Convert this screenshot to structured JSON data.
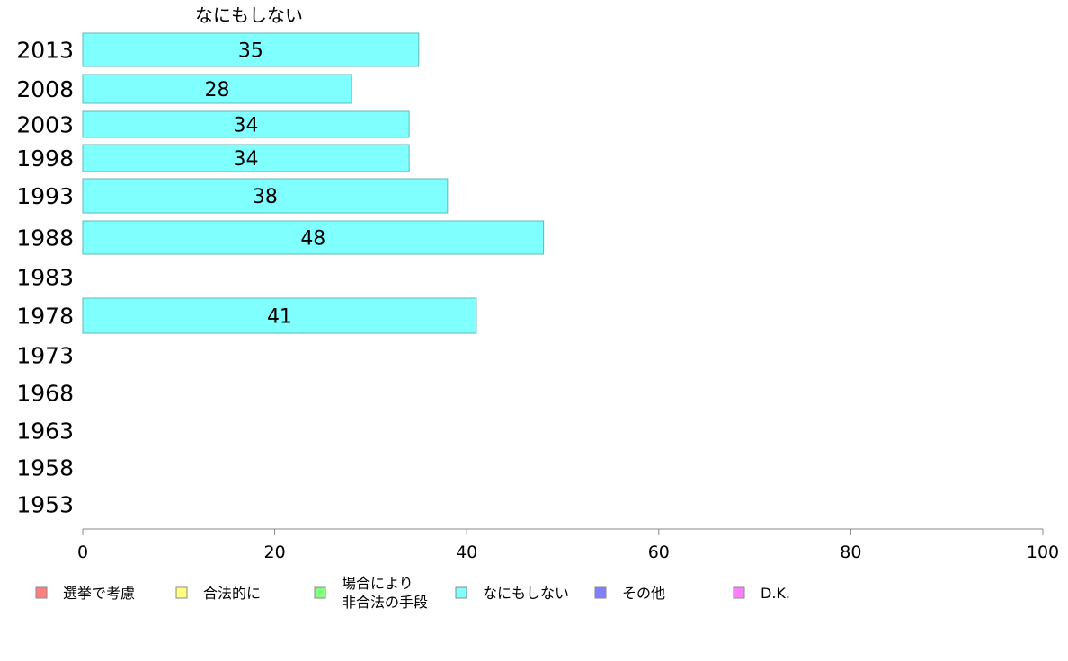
{
  "chart_data": {
    "type": "bar",
    "orientation": "horizontal",
    "title": "なにもしない",
    "categories": [
      "2013",
      "2008",
      "2003",
      "1998",
      "1993",
      "1988",
      "1983",
      "1978",
      "1973",
      "1968",
      "1963",
      "1958",
      "1953"
    ],
    "series": [
      {
        "name": "なにもしない",
        "values": [
          35,
          28,
          34,
          34,
          38,
          48,
          null,
          41,
          null,
          null,
          null,
          null,
          null
        ],
        "labels": [
          "35",
          "28",
          "34",
          "34",
          "38",
          "48",
          "",
          "41",
          "",
          "",
          "",
          "",
          ""
        ],
        "color": "#80ffff",
        "stroke": "#5fb7b7"
      }
    ],
    "xlim": [
      0,
      100
    ],
    "xticks": [
      "0",
      "20",
      "40",
      "60",
      "80",
      "100"
    ],
    "xlabel": "",
    "ylabel": "",
    "grid": false,
    "legend_position": "bottom",
    "legend": [
      {
        "name": "選挙で考慮",
        "lines": [
          "選挙で考慮"
        ],
        "color": "#ff8080"
      },
      {
        "name": "合法的に",
        "lines": [
          "合法的に"
        ],
        "color": "#ffff80"
      },
      {
        "name": "場合により非合法の手段",
        "lines": [
          "場合により",
          "非合法の手段"
        ],
        "color": "#80ff80"
      },
      {
        "name": "なにもしない",
        "lines": [
          "なにもしない"
        ],
        "color": "#80ffff"
      },
      {
        "name": "その他",
        "lines": [
          "その他"
        ],
        "color": "#8080ff"
      },
      {
        "name": "D.K.",
        "lines": [
          "D.K."
        ],
        "color": "#ff80ff"
      }
    ]
  }
}
